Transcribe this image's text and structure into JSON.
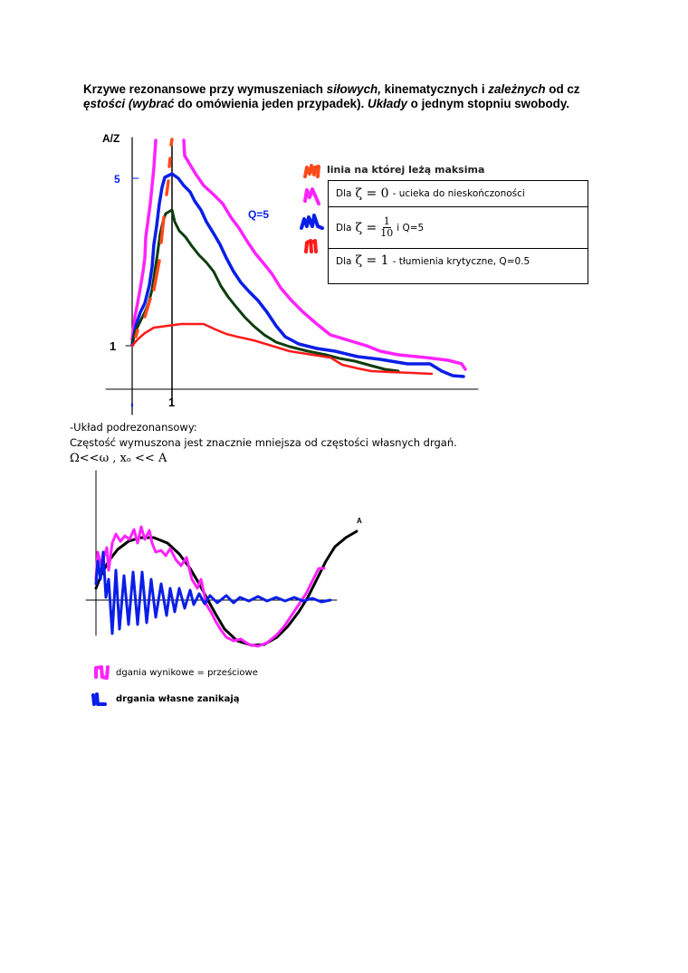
{
  "title": {
    "part1": "Krzywe rezonansowe przy wymuszeniach ",
    "italic1": "siłowych,",
    "part2": " kinematycznych i ",
    "italic2": "zależnych",
    "part3": " od cz",
    "part4": "ęstości (wybrać",
    "part5": " do omówienia jeden przypadek). ",
    "italic3": "Układy",
    "part6": " o jednym stopniu swobody."
  },
  "chart1": {
    "y_label": "A/Z",
    "tick_5": "5",
    "tick_1_y": "1",
    "tick_1_x": "1",
    "q_label": "Q=5",
    "legend_maxima": "linia na której leżą maksima",
    "rows": [
      {
        "prefix": "Dla",
        "math": "ζ = 0",
        "suffix": "- ucieka do nieskończoności"
      },
      {
        "prefix": "Dla",
        "math": "ζ =",
        "num": "1",
        "den": "10",
        "suffix": "i Q=5"
      },
      {
        "prefix": "Dla",
        "math": "ζ = 1",
        "suffix": "- tłumienia krytyczne, Q=0.5"
      }
    ],
    "colors": {
      "maxima": "#ff4a1a",
      "zeta0": "#ff22ff",
      "zeta01": "#0a1ee8",
      "green": "#0d3d0d",
      "zeta1": "#ff1a1a"
    }
  },
  "section": {
    "heading": "-Układ podrezonansowy:",
    "line": "Częstość wymuszona jest znacznie mniejsza od częstości własnych drgań.",
    "formula": "Ω<<ω , xₒ << A"
  },
  "chart2": {
    "label_a": "A",
    "legend1": "dgania wynikowe = prześciowe",
    "legend2": "drgania własne zanikają",
    "colors": {
      "forced": "#000000",
      "result": "#ff22ff",
      "free": "#0a1ee8"
    }
  }
}
